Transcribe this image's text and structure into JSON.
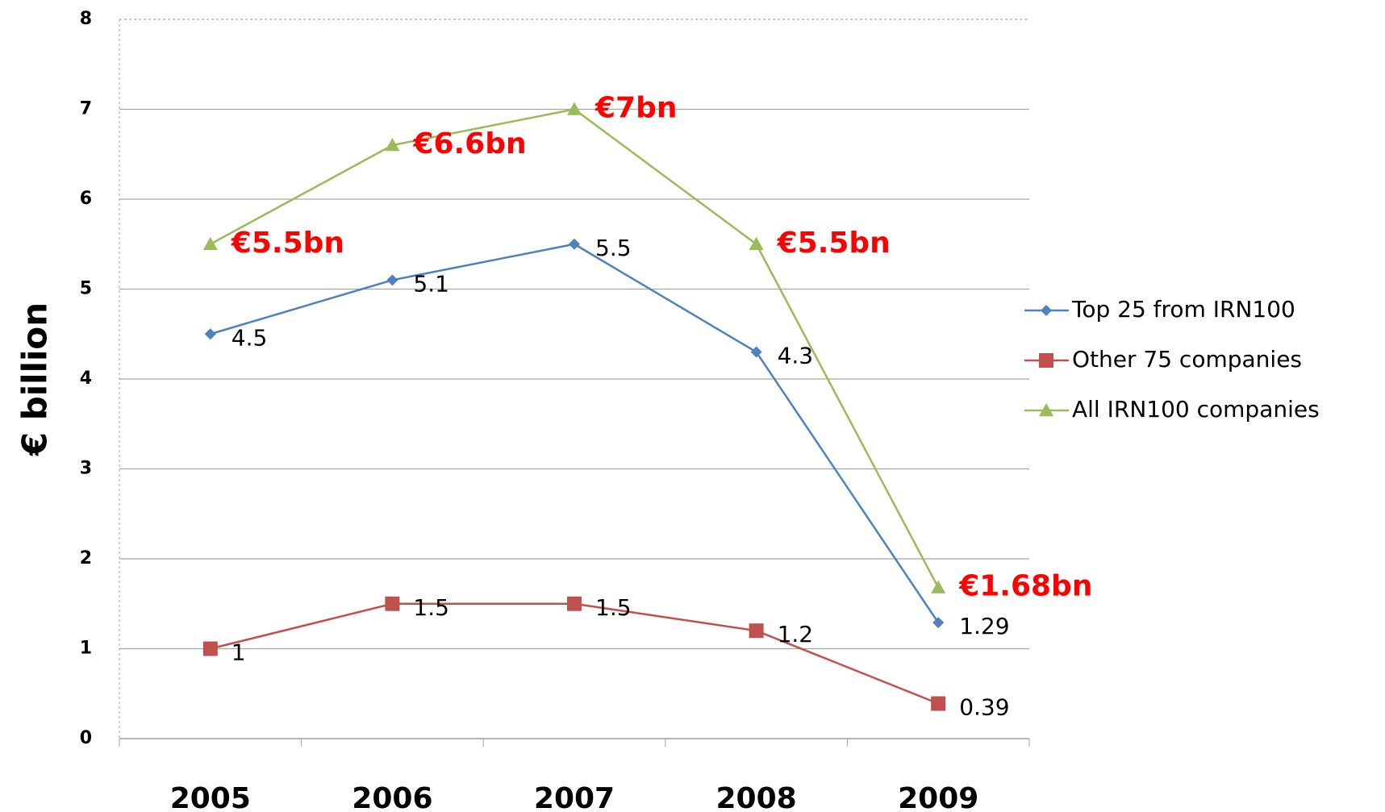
{
  "chart_data": {
    "type": "line",
    "y_label": "€ billion",
    "categories": [
      "2005",
      "2006",
      "2007",
      "2008",
      "2009"
    ],
    "series": [
      {
        "name": "Top 25 from IRN100",
        "color": "#4f81bd",
        "marker": "diamond",
        "values": [
          4.5,
          5.1,
          5.5,
          4.3,
          1.29
        ]
      },
      {
        "name": "Other 75 companies",
        "color": "#c0504d",
        "marker": "square",
        "values": [
          1,
          1.5,
          1.5,
          1.2,
          0.39
        ]
      },
      {
        "name": "All IRN100 companies",
        "color": "#9bbb59",
        "marker": "triangle",
        "values": [
          5.5,
          6.6,
          7,
          5.5,
          1.68
        ],
        "value_labels": [
          "€5.5bn",
          "€6.6bn",
          "€7bn",
          "€5.5bn",
          "€1.68bn"
        ],
        "label_color": "#ff0000"
      }
    ],
    "ylim": [
      0,
      8
    ],
    "yticks": [
      0,
      1,
      2,
      3,
      4,
      5,
      6,
      7,
      8
    ],
    "grid": true,
    "legend": "right"
  }
}
